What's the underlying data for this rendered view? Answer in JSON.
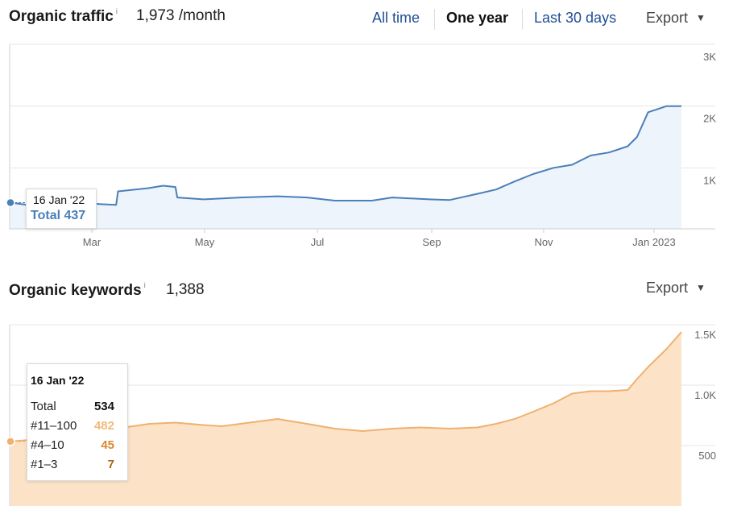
{
  "traffic": {
    "title": "Organic traffic",
    "info": "i",
    "metric": "1,973 /month",
    "ranges": [
      "All time",
      "One year",
      "Last 30 days"
    ],
    "active_range": "One year",
    "export_label": "Export",
    "caret": "▼",
    "tooltip": {
      "date": "16 Jan '22",
      "total_label": "Total 437"
    }
  },
  "keywords": {
    "title": "Organic keywords",
    "info": "i",
    "metric": "1,388",
    "export_label": "Export",
    "caret": "▼",
    "tooltip": {
      "date": "16 Jan '22",
      "rows": [
        {
          "label": "Total",
          "value": "534",
          "color": "#111111"
        },
        {
          "label": "#11–100",
          "value": "482",
          "color": "#f2b97a"
        },
        {
          "label": "#4–10",
          "value": "45",
          "color": "#d7892f"
        },
        {
          "label": "#1–3",
          "value": "7",
          "color": "#b0620f"
        }
      ]
    }
  },
  "chart_data": [
    {
      "type": "area",
      "x_labels": [
        "Mar",
        "May",
        "Jul",
        "Sep",
        "Nov",
        "Jan 2023"
      ],
      "y_ticks": [
        "1K",
        "2K",
        "3K"
      ],
      "ylim": [
        0,
        3000
      ],
      "grid": true,
      "colors": {
        "line": "#4a7fb8",
        "fill": "#eef4fb"
      },
      "series": [
        {
          "x": [
            "2022-01-16",
            "2022-01-25",
            "2022-02-10",
            "2022-02-25",
            "2022-03-01",
            "2022-03-14",
            "2022-03-15",
            "2022-03-31",
            "2022-04-08",
            "2022-04-09",
            "2022-04-15",
            "2022-04-16",
            "2022-04-30",
            "2022-05-20",
            "2022-06-09",
            "2022-06-25",
            "2022-07-10",
            "2022-07-30",
            "2022-08-10",
            "2022-08-30",
            "2022-09-10",
            "2022-09-25",
            "2022-10-05",
            "2022-10-15",
            "2022-10-25",
            "2022-11-05",
            "2022-11-15",
            "2022-11-25",
            "2022-12-05",
            "2022-12-15",
            "2022-12-20",
            "2022-12-26",
            "2023-01-05",
            "2023-01-13"
          ],
          "values": [
            437,
            400,
            390,
            370,
            420,
            400,
            620,
            670,
            710,
            710,
            690,
            520,
            490,
            520,
            540,
            520,
            470,
            470,
            520,
            490,
            480,
            580,
            650,
            780,
            900,
            1000,
            1050,
            1200,
            1250,
            1350,
            1500,
            1900,
            2000,
            2000
          ]
        }
      ]
    },
    {
      "type": "area",
      "x_labels": [],
      "y_ticks": [
        "500",
        "1.0K",
        "1.5K"
      ],
      "ylim": [
        0,
        1500
      ],
      "grid": true,
      "colors": {
        "line": "#f0b070",
        "fill": "#fce3c8"
      },
      "series": [
        {
          "x": [
            "2022-01-16",
            "2022-01-25",
            "2022-02-10",
            "2022-02-25",
            "2022-03-01",
            "2022-03-14",
            "2022-04-01",
            "2022-04-15",
            "2022-04-30",
            "2022-05-10",
            "2022-05-25",
            "2022-06-09",
            "2022-06-25",
            "2022-07-10",
            "2022-07-25",
            "2022-08-10",
            "2022-08-25",
            "2022-09-10",
            "2022-09-25",
            "2022-10-05",
            "2022-10-15",
            "2022-10-25",
            "2022-11-05",
            "2022-11-15",
            "2022-11-25",
            "2022-12-05",
            "2022-12-15",
            "2022-12-20",
            "2022-12-26",
            "2023-01-05",
            "2023-01-13"
          ],
          "values": [
            534,
            545,
            550,
            540,
            600,
            640,
            680,
            690,
            670,
            660,
            690,
            720,
            680,
            640,
            620,
            640,
            650,
            640,
            650,
            680,
            720,
            780,
            850,
            930,
            950,
            950,
            960,
            1050,
            1150,
            1300,
            1440
          ]
        }
      ]
    }
  ]
}
